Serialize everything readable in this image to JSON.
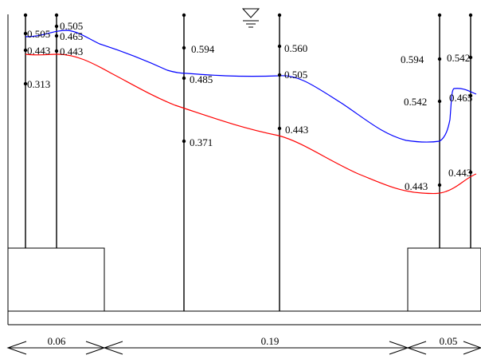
{
  "colors": {
    "upper_curve": "#0000ff",
    "lower_curve": "#ff0000",
    "lines": "#000000"
  },
  "icons": {
    "water_surface": "water-level-symbol"
  },
  "point_values": {
    "p1a": "0.505",
    "p1b": "0.443",
    "p1c": "0.313",
    "p2a": "0.505",
    "p2b": "0.465",
    "p2c": "0.443",
    "p3a": "0.594",
    "p3b": "0.485",
    "p3c": "0.371",
    "p4a": "0.560",
    "p4b": "0.505",
    "p4c": "0.443",
    "p5a": "0.594",
    "p5b": "0.542",
    "p5c": "0.443",
    "p6a": "0.542",
    "p6b": "0.465",
    "p6c": "0.443"
  },
  "dimensions": {
    "left": "0.06",
    "middle": "0.19",
    "right": "0.05"
  }
}
